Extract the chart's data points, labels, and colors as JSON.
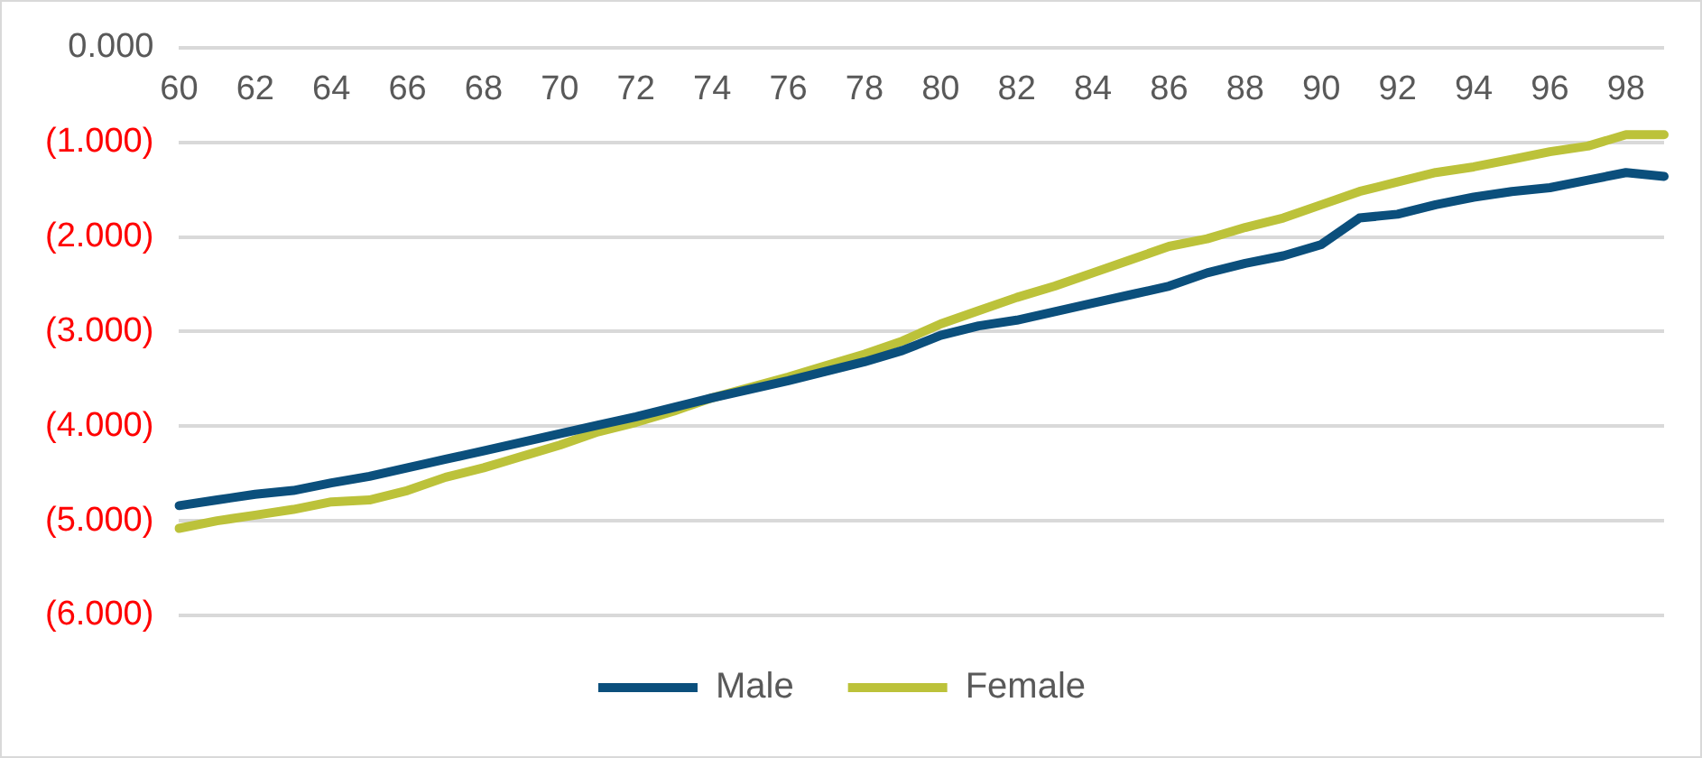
{
  "chart_data": {
    "type": "line",
    "categories": [
      "60",
      null,
      "62",
      null,
      "64",
      null,
      "66",
      null,
      "68",
      null,
      "70",
      null,
      "72",
      null,
      "74",
      null,
      "76",
      null,
      "78",
      null,
      "80",
      null,
      "82",
      null,
      "84",
      null,
      "86",
      null,
      "88",
      null,
      "90",
      null,
      "92",
      null,
      "94",
      null,
      "96",
      null,
      "98",
      null
    ],
    "series": [
      {
        "name": "Male",
        "color": "#0b4f7c",
        "values": [
          -4.84,
          -4.78,
          -4.72,
          -4.68,
          -4.6,
          -4.53,
          -4.44,
          -4.35,
          -4.26,
          -4.17,
          -4.08,
          -3.99,
          -3.9,
          -3.8,
          -3.7,
          -3.61,
          -3.52,
          -3.42,
          -3.32,
          -3.2,
          -3.04,
          -2.94,
          -2.88,
          -2.79,
          -2.7,
          -2.61,
          -2.52,
          -2.38,
          -2.28,
          -2.2,
          -2.08,
          -1.8,
          -1.76,
          -1.66,
          -1.58,
          -1.52,
          -1.48,
          -1.4,
          -1.32,
          -1.36
        ]
      },
      {
        "name": "Female",
        "color": "#bcc23a",
        "values": [
          -5.08,
          -5.0,
          -4.94,
          -4.88,
          -4.8,
          -4.78,
          -4.68,
          -4.54,
          -4.44,
          -4.32,
          -4.2,
          -4.06,
          -3.96,
          -3.84,
          -3.7,
          -3.59,
          -3.48,
          -3.36,
          -3.24,
          -3.1,
          -2.92,
          -2.78,
          -2.64,
          -2.52,
          -2.38,
          -2.24,
          -2.1,
          -2.02,
          -1.9,
          -1.8,
          -1.66,
          -1.52,
          -1.42,
          -1.32,
          -1.26,
          -1.18,
          -1.1,
          -1.04,
          -0.92,
          -0.92
        ]
      }
    ],
    "ylim": [
      -6,
      0
    ],
    "yticks": [
      {
        "value": 0,
        "label": "0.000"
      },
      {
        "value": -1,
        "label": "(1.000)"
      },
      {
        "value": -2,
        "label": "(2.000)"
      },
      {
        "value": -3,
        "label": "(3.000)"
      },
      {
        "value": -4,
        "label": "(4.000)"
      },
      {
        "value": -5,
        "label": "(5.000)"
      },
      {
        "value": -6,
        "label": "(6.000)"
      }
    ],
    "grid": "y",
    "legend": "bottom",
    "marker": "none",
    "line_style": "solid"
  }
}
